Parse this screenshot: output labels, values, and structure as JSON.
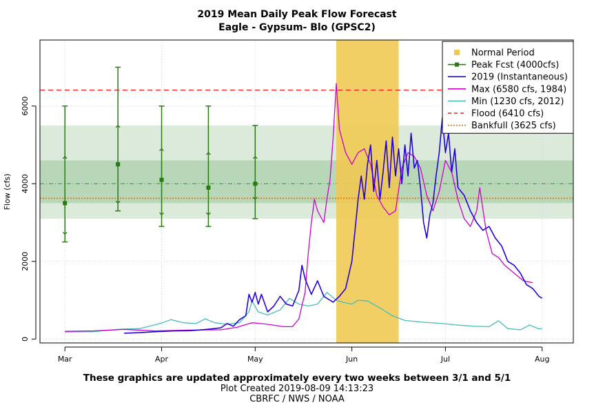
{
  "chart_data": {
    "type": "line",
    "title": "2019 Mean Daily Peak Flow Forecast",
    "subtitle": "Eagle - Gypsum- Blo (GPSC2)",
    "ylabel": "Flow (cfs)",
    "ylim": [
      -100,
      7700
    ],
    "yticks": [
      0,
      2000,
      4000,
      6000
    ],
    "xlim": [
      "2019-02-21",
      "2019-08-11"
    ],
    "xticks": [
      {
        "date": "2019-03-01",
        "label": "Mar"
      },
      {
        "date": "2019-04-01",
        "label": "Apr"
      },
      {
        "date": "2019-05-01",
        "label": "May"
      },
      {
        "date": "2019-06-01",
        "label": "Jun"
      },
      {
        "date": "2019-07-01",
        "label": "Jul"
      },
      {
        "date": "2019-08-01",
        "label": "Aug"
      }
    ],
    "grid": true,
    "legend_position": "top-right",
    "bands": {
      "outer": [
        3100,
        5500
      ],
      "inner": [
        3500,
        4600
      ],
      "median": 4000,
      "color": "#8fbf8f"
    },
    "normal_period": {
      "start": "2019-05-27",
      "end": "2019-06-16",
      "color": "#f0c850"
    },
    "flood": {
      "value": 6410,
      "color": "#ee2222"
    },
    "bankfull": {
      "value": 3625,
      "color": "#ee7700"
    },
    "forecasts": {
      "color": "#2a7a12",
      "points": [
        {
          "date": "2019-03-01",
          "mid": 3500,
          "p10": 2500,
          "p30": 2700,
          "p70": 4700,
          "p90": 6000
        },
        {
          "date": "2019-03-18",
          "mid": 4500,
          "p10": 3300,
          "p30": 3500,
          "p70": 5500,
          "p90": 7000
        },
        {
          "date": "2019-04-01",
          "mid": 4100,
          "p10": 2900,
          "p30": 3200,
          "p70": 4900,
          "p90": 6000
        },
        {
          "date": "2019-04-16",
          "mid": 3900,
          "p10": 2900,
          "p30": 3200,
          "p70": 4800,
          "p90": 6000
        },
        {
          "date": "2019-05-01",
          "mid": 4000,
          "p10": 3100,
          "p30": 3600,
          "p70": 4700,
          "p90": 5500
        }
      ]
    },
    "series": [
      {
        "name": "2019  (Instantaneous)",
        "color": "#2200dd",
        "points": [
          [
            "2019-03-20",
            150
          ],
          [
            "2019-03-25",
            165
          ],
          [
            "2019-03-30",
            190
          ],
          [
            "2019-04-05",
            210
          ],
          [
            "2019-04-10",
            215
          ],
          [
            "2019-04-14",
            240
          ],
          [
            "2019-04-17",
            260
          ],
          [
            "2019-04-20",
            290
          ],
          [
            "2019-04-22",
            400
          ],
          [
            "2019-04-24",
            330
          ],
          [
            "2019-04-26",
            500
          ],
          [
            "2019-04-28",
            600
          ],
          [
            "2019-04-29",
            1150
          ],
          [
            "2019-04-30",
            950
          ],
          [
            "2019-05-01",
            1200
          ],
          [
            "2019-05-02",
            900
          ],
          [
            "2019-05-03",
            1150
          ],
          [
            "2019-05-05",
            700
          ],
          [
            "2019-05-07",
            850
          ],
          [
            "2019-05-09",
            1100
          ],
          [
            "2019-05-11",
            900
          ],
          [
            "2019-05-13",
            850
          ],
          [
            "2019-05-15",
            1250
          ],
          [
            "2019-05-16",
            1900
          ],
          [
            "2019-05-17",
            1550
          ],
          [
            "2019-05-19",
            1150
          ],
          [
            "2019-05-21",
            1500
          ],
          [
            "2019-05-23",
            1100
          ],
          [
            "2019-05-26",
            950
          ],
          [
            "2019-05-28",
            1100
          ],
          [
            "2019-05-30",
            1300
          ],
          [
            "2019-06-01",
            2000
          ],
          [
            "2019-06-02",
            2800
          ],
          [
            "2019-06-03",
            3600
          ],
          [
            "2019-06-04",
            4200
          ],
          [
            "2019-06-05",
            3600
          ],
          [
            "2019-06-06",
            4500
          ],
          [
            "2019-06-07",
            5000
          ],
          [
            "2019-06-08",
            3800
          ],
          [
            "2019-06-09",
            4600
          ],
          [
            "2019-06-10",
            3600
          ],
          [
            "2019-06-11",
            4300
          ],
          [
            "2019-06-12",
            5100
          ],
          [
            "2019-06-13",
            3900
          ],
          [
            "2019-06-14",
            5200
          ],
          [
            "2019-06-15",
            4200
          ],
          [
            "2019-06-16",
            4900
          ],
          [
            "2019-06-17",
            4000
          ],
          [
            "2019-06-18",
            5000
          ],
          [
            "2019-06-19",
            4200
          ],
          [
            "2019-06-20",
            5300
          ],
          [
            "2019-06-21",
            4400
          ],
          [
            "2019-06-22",
            4600
          ],
          [
            "2019-06-23",
            3900
          ],
          [
            "2019-06-24",
            3000
          ],
          [
            "2019-06-25",
            2600
          ],
          [
            "2019-06-26",
            3200
          ],
          [
            "2019-06-27",
            3500
          ],
          [
            "2019-06-28",
            4200
          ],
          [
            "2019-06-29",
            4800
          ],
          [
            "2019-06-30",
            5700
          ],
          [
            "2019-07-01",
            4800
          ],
          [
            "2019-07-02",
            5300
          ],
          [
            "2019-07-03",
            4300
          ],
          [
            "2019-07-04",
            4900
          ],
          [
            "2019-07-05",
            3900
          ],
          [
            "2019-07-07",
            3700
          ],
          [
            "2019-07-09",
            3300
          ],
          [
            "2019-07-11",
            3000
          ],
          [
            "2019-07-13",
            2800
          ],
          [
            "2019-07-15",
            2900
          ],
          [
            "2019-07-17",
            2600
          ],
          [
            "2019-07-19",
            2400
          ],
          [
            "2019-07-21",
            2000
          ],
          [
            "2019-07-23",
            1900
          ],
          [
            "2019-07-25",
            1700
          ],
          [
            "2019-07-27",
            1400
          ],
          [
            "2019-07-29",
            1300
          ],
          [
            "2019-07-31",
            1100
          ],
          [
            "2019-08-01",
            1050
          ]
        ]
      },
      {
        "name": "Max (6580 cfs, 1984)",
        "color": "#cc00cc",
        "points": [
          [
            "2019-03-01",
            200
          ],
          [
            "2019-03-10",
            210
          ],
          [
            "2019-03-20",
            250
          ],
          [
            "2019-03-30",
            210
          ],
          [
            "2019-04-10",
            230
          ],
          [
            "2019-04-20",
            240
          ],
          [
            "2019-04-25",
            300
          ],
          [
            "2019-04-30",
            420
          ],
          [
            "2019-05-05",
            380
          ],
          [
            "2019-05-10",
            320
          ],
          [
            "2019-05-13",
            320
          ],
          [
            "2019-05-15",
            520
          ],
          [
            "2019-05-17",
            1200
          ],
          [
            "2019-05-18",
            2200
          ],
          [
            "2019-05-19",
            3000
          ],
          [
            "2019-05-20",
            3600
          ],
          [
            "2019-05-21",
            3300
          ],
          [
            "2019-05-23",
            3000
          ],
          [
            "2019-05-24",
            3600
          ],
          [
            "2019-05-25",
            4100
          ],
          [
            "2019-05-26",
            5200
          ],
          [
            "2019-05-27",
            6580
          ],
          [
            "2019-05-28",
            5400
          ],
          [
            "2019-05-30",
            4800
          ],
          [
            "2019-06-01",
            4500
          ],
          [
            "2019-06-03",
            4800
          ],
          [
            "2019-06-05",
            4900
          ],
          [
            "2019-06-07",
            4500
          ],
          [
            "2019-06-09",
            3700
          ],
          [
            "2019-06-11",
            3400
          ],
          [
            "2019-06-13",
            3200
          ],
          [
            "2019-06-15",
            3300
          ],
          [
            "2019-06-17",
            4400
          ],
          [
            "2019-06-19",
            4800
          ],
          [
            "2019-06-21",
            4700
          ],
          [
            "2019-06-23",
            4400
          ],
          [
            "2019-06-25",
            3700
          ],
          [
            "2019-06-27",
            3300
          ],
          [
            "2019-06-29",
            3800
          ],
          [
            "2019-07-01",
            4600
          ],
          [
            "2019-07-03",
            4300
          ],
          [
            "2019-07-05",
            3600
          ],
          [
            "2019-07-07",
            3100
          ],
          [
            "2019-07-09",
            2900
          ],
          [
            "2019-07-11",
            3300
          ],
          [
            "2019-07-12",
            3900
          ],
          [
            "2019-07-14",
            2800
          ],
          [
            "2019-07-16",
            2200
          ],
          [
            "2019-07-18",
            2100
          ],
          [
            "2019-07-20",
            1900
          ],
          [
            "2019-07-23",
            1700
          ],
          [
            "2019-07-26",
            1500
          ],
          [
            "2019-07-29",
            1450
          ]
        ]
      },
      {
        "name": "Min (1230 cfs, 2012)",
        "color": "#44bbbb",
        "points": [
          [
            "2019-03-01",
            180
          ],
          [
            "2019-03-10",
            190
          ],
          [
            "2019-03-18",
            250
          ],
          [
            "2019-03-25",
            270
          ],
          [
            "2019-04-01",
            410
          ],
          [
            "2019-04-04",
            500
          ],
          [
            "2019-04-08",
            420
          ],
          [
            "2019-04-12",
            400
          ],
          [
            "2019-04-15",
            520
          ],
          [
            "2019-04-18",
            420
          ],
          [
            "2019-04-22",
            380
          ],
          [
            "2019-04-26",
            420
          ],
          [
            "2019-04-29",
            700
          ],
          [
            "2019-04-30",
            980
          ],
          [
            "2019-05-02",
            700
          ],
          [
            "2019-05-05",
            620
          ],
          [
            "2019-05-09",
            750
          ],
          [
            "2019-05-12",
            1050
          ],
          [
            "2019-05-15",
            900
          ],
          [
            "2019-05-18",
            850
          ],
          [
            "2019-05-21",
            900
          ],
          [
            "2019-05-24",
            1200
          ],
          [
            "2019-05-27",
            1000
          ],
          [
            "2019-05-29",
            950
          ],
          [
            "2019-06-01",
            900
          ],
          [
            "2019-06-03",
            1000
          ],
          [
            "2019-06-06",
            980
          ],
          [
            "2019-06-10",
            800
          ],
          [
            "2019-06-14",
            600
          ],
          [
            "2019-06-18",
            480
          ],
          [
            "2019-06-23",
            440
          ],
          [
            "2019-06-30",
            400
          ],
          [
            "2019-07-05",
            360
          ],
          [
            "2019-07-10",
            330
          ],
          [
            "2019-07-15",
            320
          ],
          [
            "2019-07-18",
            470
          ],
          [
            "2019-07-21",
            270
          ],
          [
            "2019-07-25",
            240
          ],
          [
            "2019-07-28",
            360
          ],
          [
            "2019-07-31",
            260
          ],
          [
            "2019-08-01",
            270
          ]
        ]
      }
    ],
    "legend": [
      {
        "label": "Normal Period",
        "kind": "square",
        "color": "#f0c850"
      },
      {
        "label": "Peak Fcst (4000cfs)",
        "kind": "line-square",
        "color": "#2a7a12"
      },
      {
        "label": "2019  (Instantaneous)",
        "kind": "line",
        "color": "#2200dd"
      },
      {
        "label": "Max (6580 cfs, 1984)",
        "kind": "line",
        "color": "#cc00cc"
      },
      {
        "label": "Min (1230 cfs, 2012)",
        "kind": "line",
        "color": "#44bbbb"
      },
      {
        "label": "Flood (6410 cfs)",
        "kind": "dashed",
        "color": "#ee2222"
      },
      {
        "label": "Bankfull (3625 cfs)",
        "kind": "dotted",
        "color": "#ee7700"
      }
    ]
  },
  "footer": {
    "note": "These graphics are updated approximately every two weeks between 3/1 and 5/1",
    "created": "Plot Created 2019-08-09 14:13:23",
    "credit": "CBRFC / NWS / NOAA"
  }
}
